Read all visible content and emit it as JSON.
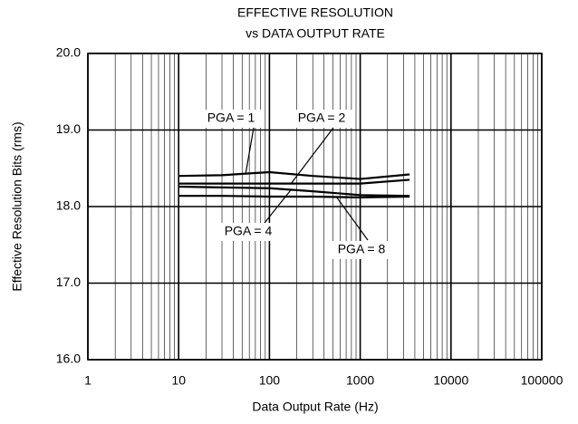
{
  "chart_data": {
    "type": "line",
    "title": "EFFECTIVE RESOLUTION",
    "subtitle": "vs DATA OUTPUT RATE",
    "x_label": "Data Output Rate (Hz)",
    "y_label": "Effective Resolution Bits (rms)",
    "x_scale": "log",
    "grid": true,
    "color": "#000000",
    "xlim": [
      1,
      100000
    ],
    "xticks": [
      1,
      10,
      100,
      1000,
      10000,
      100000
    ],
    "ylim": [
      16,
      20
    ],
    "yticks": [
      {
        "value": 16,
        "label": "16.0"
      },
      {
        "value": 17,
        "label": "17.0"
      },
      {
        "value": 18,
        "label": "18.0"
      },
      {
        "value": 19,
        "label": "19.0"
      },
      {
        "value": 20,
        "label": "20.0"
      }
    ],
    "x": [
      10,
      30,
      100,
      300,
      1000,
      3500
    ],
    "series": [
      {
        "name": "PGA = 1",
        "values": [
          18.4,
          18.41,
          18.45,
          18.4,
          18.36,
          18.42
        ]
      },
      {
        "name": "PGA = 2",
        "values": [
          18.3,
          18.3,
          18.3,
          18.3,
          18.3,
          18.35
        ]
      },
      {
        "name": "PGA = 4",
        "values": [
          18.26,
          18.25,
          18.24,
          18.2,
          18.15,
          18.14
        ]
      },
      {
        "name": "PGA = 8",
        "values": [
          18.14,
          18.14,
          18.13,
          18.13,
          18.12,
          18.13
        ]
      }
    ]
  }
}
